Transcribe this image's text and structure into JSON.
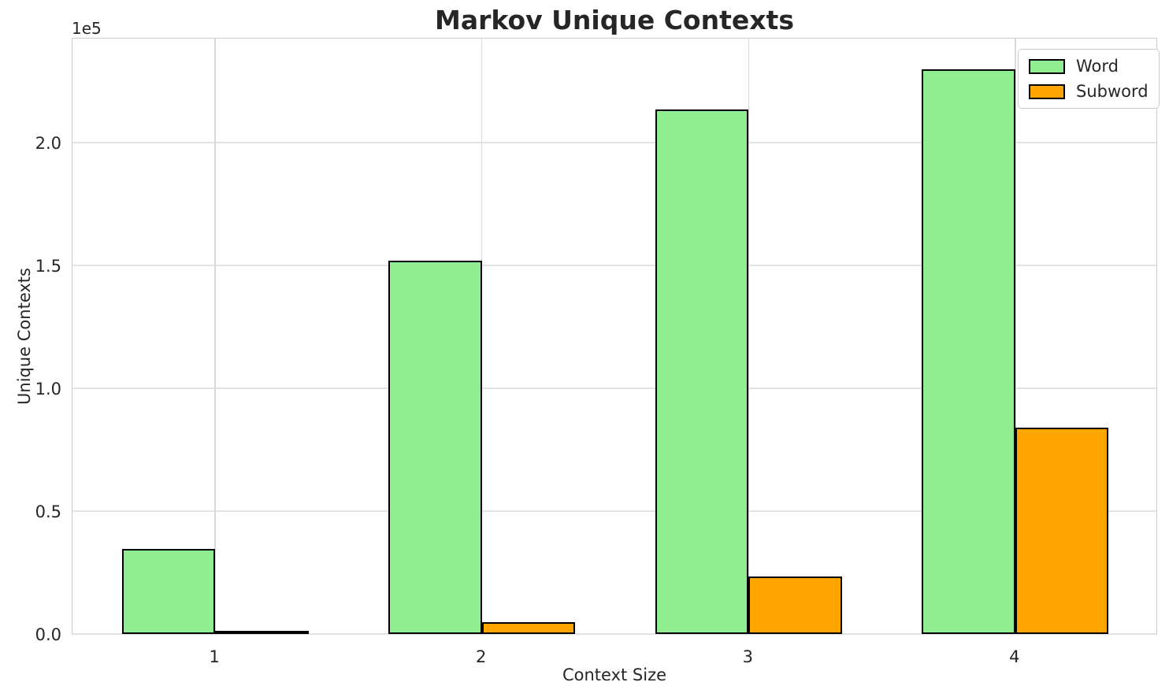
{
  "title": "Markov Unique Contexts",
  "offset_text": "1e5",
  "xlabel": "Context Size",
  "ylabel": "Unique Contexts",
  "chart_data": {
    "type": "bar",
    "title": "Markov Unique Contexts",
    "xlabel": "Context Size",
    "ylabel": "Unique Contexts",
    "categories": [
      1,
      2,
      3,
      4
    ],
    "series": [
      {
        "name": "Word",
        "color": "#90EE90",
        "values": [
          34500,
          152000,
          213500,
          230000
        ]
      },
      {
        "name": "Subword",
        "color": "#FFA500",
        "values": [
          700,
          4800,
          23500,
          84000
        ]
      }
    ],
    "bar_edge_color": "#000000",
    "bar_width": 0.35,
    "xlim": [
      0.465,
      4.535
    ],
    "ylim": [
      0,
      243000
    ],
    "yticks": [
      0,
      50000,
      100000,
      150000,
      200000
    ],
    "ytick_labels": [
      "0.0",
      "0.5",
      "1.0",
      "1.5",
      "2.0"
    ],
    "y_scale_factor": "1e5",
    "grid": true,
    "legend_position": "upper right"
  }
}
